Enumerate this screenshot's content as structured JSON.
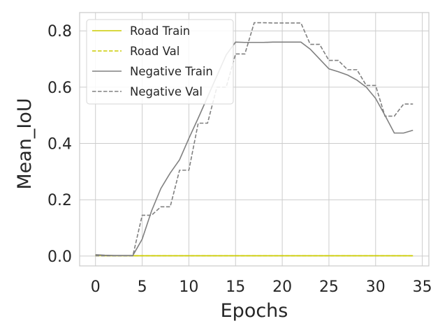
{
  "chart_data": {
    "type": "line",
    "title": "",
    "xlabel": "Epochs",
    "ylabel": "Mean_IoU",
    "xlim": [
      -1.7,
      35.7
    ],
    "ylim": [
      -0.035,
      0.865
    ],
    "xticks": [
      0,
      5,
      10,
      15,
      20,
      25,
      30,
      35
    ],
    "yticks": [
      0.0,
      0.2,
      0.4,
      0.6,
      0.8
    ],
    "ytick_labels": [
      "0.0",
      "0.2",
      "0.4",
      "0.6",
      "0.8"
    ],
    "grid": true,
    "legend_position": "top-left",
    "x": [
      0,
      1,
      2,
      3,
      4,
      5,
      6,
      7,
      8,
      9,
      10,
      11,
      12,
      13,
      14,
      15,
      16,
      17,
      18,
      19,
      20,
      21,
      22,
      23,
      24,
      25,
      26,
      27,
      28,
      29,
      30,
      31,
      32,
      33,
      34
    ],
    "series": [
      {
        "name": "Road Train",
        "color": "#cccc00",
        "style": "solid",
        "values": [
          0.003,
          0.001,
          0.001,
          0.001,
          0.001,
          0.001,
          0.001,
          0.001,
          0.001,
          0.001,
          0.001,
          0.001,
          0.001,
          0.001,
          0.001,
          0.001,
          0.001,
          0.001,
          0.001,
          0.001,
          0.001,
          0.001,
          0.001,
          0.001,
          0.001,
          0.001,
          0.001,
          0.001,
          0.001,
          0.001,
          0.001,
          0.001,
          0.001,
          0.001,
          0.001
        ]
      },
      {
        "name": "Road Val",
        "color": "#cccc00",
        "style": "dashed",
        "values": [
          0.001,
          0.001,
          0.001,
          0.001,
          0.001,
          0.001,
          0.001,
          0.001,
          0.001,
          0.001,
          0.001,
          0.001,
          0.001,
          0.001,
          0.001,
          0.001,
          0.001,
          0.001,
          0.001,
          0.001,
          0.001,
          0.001,
          0.001,
          0.001,
          0.001,
          0.001,
          0.001,
          0.001,
          0.001,
          0.001,
          0.001,
          0.001,
          0.001,
          0.001,
          0.001
        ]
      },
      {
        "name": "Negative Train",
        "color": "#808080",
        "style": "solid",
        "values": [
          0.005,
          0.003,
          0.002,
          0.002,
          0.002,
          0.06,
          0.16,
          0.24,
          0.295,
          0.342,
          0.418,
          0.49,
          0.565,
          0.64,
          0.715,
          0.76,
          0.759,
          0.759,
          0.759,
          0.76,
          0.76,
          0.76,
          0.76,
          0.735,
          0.7,
          0.665,
          0.655,
          0.643,
          0.625,
          0.6,
          0.56,
          0.5,
          0.437,
          0.437,
          0.447
        ]
      },
      {
        "name": "Negative Val",
        "color": "#808080",
        "style": "dashed",
        "values": [
          0.001,
          0.001,
          0.001,
          0.001,
          0.001,
          0.145,
          0.145,
          0.175,
          0.175,
          0.305,
          0.305,
          0.472,
          0.472,
          0.6,
          0.6,
          0.718,
          0.718,
          0.829,
          0.829,
          0.828,
          0.828,
          0.828,
          0.828,
          0.752,
          0.752,
          0.695,
          0.695,
          0.662,
          0.662,
          0.606,
          0.606,
          0.497,
          0.497,
          0.54,
          0.54
        ]
      }
    ]
  }
}
